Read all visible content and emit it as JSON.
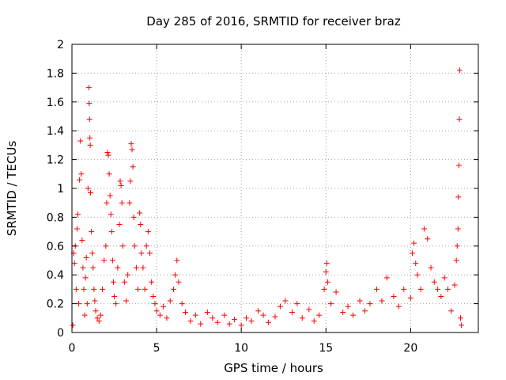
{
  "chart_data": {
    "type": "scatter",
    "title": "Day 285 of 2016, SRMTID for receiver braz",
    "xlabel": "GPS time / hours",
    "ylabel": "SRMTID / TECUs",
    "xlim": [
      0,
      24
    ],
    "ylim": [
      0,
      2
    ],
    "xticks": [
      0,
      5,
      10,
      15,
      20
    ],
    "xtick_labels": [
      "0",
      "5",
      "10",
      "15",
      "20"
    ],
    "yticks": [
      0,
      0.2,
      0.4,
      0.6,
      0.8,
      1,
      1.2,
      1.4,
      1.6,
      1.8,
      2
    ],
    "ytick_labels": [
      "0",
      "0.2",
      "0.4",
      "0.6",
      "0.8",
      "1",
      "1.2",
      "1.4",
      "1.6",
      "1.8",
      "2"
    ],
    "grid": true,
    "marker": "+",
    "series": [
      {
        "name": "SRMTID",
        "color": "#ff0000",
        "points": [
          [
            0.05,
            0.05
          ],
          [
            0.1,
            0.55
          ],
          [
            0.15,
            0.48
          ],
          [
            0.2,
            0.6
          ],
          [
            0.25,
            0.3
          ],
          [
            0.3,
            0.72
          ],
          [
            0.35,
            0.82
          ],
          [
            0.4,
            0.2
          ],
          [
            0.45,
            1.06
          ],
          [
            0.5,
            1.33
          ],
          [
            0.55,
            1.1
          ],
          [
            0.6,
            0.64
          ],
          [
            0.65,
            0.45
          ],
          [
            0.7,
            0.3
          ],
          [
            0.75,
            0.12
          ],
          [
            0.8,
            0.38
          ],
          [
            0.85,
            0.52
          ],
          [
            0.9,
            0.2
          ],
          [
            0.95,
            1.0
          ],
          [
            1.0,
            1.7
          ],
          [
            1.02,
            1.59
          ],
          [
            1.04,
            1.48
          ],
          [
            1.06,
            1.35
          ],
          [
            1.08,
            1.3
          ],
          [
            1.1,
            0.97
          ],
          [
            1.15,
            0.7
          ],
          [
            1.2,
            0.55
          ],
          [
            1.25,
            0.45
          ],
          [
            1.3,
            0.3
          ],
          [
            1.35,
            0.22
          ],
          [
            1.4,
            0.15
          ],
          [
            1.5,
            0.1
          ],
          [
            1.6,
            0.08
          ],
          [
            1.7,
            0.12
          ],
          [
            1.8,
            0.3
          ],
          [
            1.9,
            0.5
          ],
          [
            2.0,
            0.6
          ],
          [
            2.05,
            0.9
          ],
          [
            2.1,
            1.25
          ],
          [
            2.15,
            1.23
          ],
          [
            2.2,
            1.1
          ],
          [
            2.25,
            0.95
          ],
          [
            2.3,
            0.82
          ],
          [
            2.35,
            0.7
          ],
          [
            2.4,
            0.5
          ],
          [
            2.45,
            0.35
          ],
          [
            2.5,
            0.25
          ],
          [
            2.6,
            0.2
          ],
          [
            2.7,
            0.45
          ],
          [
            2.8,
            0.75
          ],
          [
            2.85,
            1.05
          ],
          [
            2.9,
            1.02
          ],
          [
            2.95,
            0.9
          ],
          [
            3.0,
            0.6
          ],
          [
            3.1,
            0.35
          ],
          [
            3.2,
            0.22
          ],
          [
            3.3,
            0.4
          ],
          [
            3.4,
            0.9
          ],
          [
            3.45,
            1.05
          ],
          [
            3.5,
            1.31
          ],
          [
            3.55,
            1.27
          ],
          [
            3.6,
            1.15
          ],
          [
            3.65,
            0.8
          ],
          [
            3.7,
            0.6
          ],
          [
            3.8,
            0.45
          ],
          [
            3.9,
            0.3
          ],
          [
            4.0,
            0.83
          ],
          [
            4.05,
            0.75
          ],
          [
            4.1,
            0.55
          ],
          [
            4.2,
            0.45
          ],
          [
            4.3,
            0.3
          ],
          [
            4.4,
            0.6
          ],
          [
            4.5,
            0.7
          ],
          [
            4.6,
            0.55
          ],
          [
            4.7,
            0.35
          ],
          [
            4.8,
            0.25
          ],
          [
            4.9,
            0.2
          ],
          [
            5.0,
            0.15
          ],
          [
            5.2,
            0.12
          ],
          [
            5.4,
            0.18
          ],
          [
            5.6,
            0.1
          ],
          [
            5.8,
            0.22
          ],
          [
            6.0,
            0.3
          ],
          [
            6.1,
            0.4
          ],
          [
            6.2,
            0.5
          ],
          [
            6.3,
            0.35
          ],
          [
            6.5,
            0.2
          ],
          [
            6.7,
            0.14
          ],
          [
            7.0,
            0.08
          ],
          [
            7.3,
            0.12
          ],
          [
            7.6,
            0.06
          ],
          [
            8.0,
            0.14
          ],
          [
            8.3,
            0.1
          ],
          [
            8.6,
            0.07
          ],
          [
            9.0,
            0.12
          ],
          [
            9.3,
            0.06
          ],
          [
            9.6,
            0.09
          ],
          [
            10.0,
            0.05
          ],
          [
            10.3,
            0.1
          ],
          [
            10.6,
            0.08
          ],
          [
            11.0,
            0.15
          ],
          [
            11.3,
            0.12
          ],
          [
            11.6,
            0.07
          ],
          [
            12.0,
            0.11
          ],
          [
            12.3,
            0.18
          ],
          [
            12.6,
            0.22
          ],
          [
            13.0,
            0.14
          ],
          [
            13.3,
            0.2
          ],
          [
            13.6,
            0.1
          ],
          [
            14.0,
            0.16
          ],
          [
            14.3,
            0.08
          ],
          [
            14.6,
            0.12
          ],
          [
            14.9,
            0.3
          ],
          [
            15.0,
            0.42
          ],
          [
            15.05,
            0.48
          ],
          [
            15.1,
            0.35
          ],
          [
            15.3,
            0.2
          ],
          [
            15.6,
            0.28
          ],
          [
            16.0,
            0.14
          ],
          [
            16.3,
            0.18
          ],
          [
            16.6,
            0.12
          ],
          [
            17.0,
            0.22
          ],
          [
            17.3,
            0.15
          ],
          [
            17.6,
            0.2
          ],
          [
            18.0,
            0.3
          ],
          [
            18.3,
            0.22
          ],
          [
            18.6,
            0.38
          ],
          [
            19.0,
            0.25
          ],
          [
            19.3,
            0.18
          ],
          [
            19.6,
            0.3
          ],
          [
            20.0,
            0.24
          ],
          [
            20.1,
            0.55
          ],
          [
            20.2,
            0.62
          ],
          [
            20.3,
            0.48
          ],
          [
            20.4,
            0.4
          ],
          [
            20.6,
            0.3
          ],
          [
            20.8,
            0.72
          ],
          [
            21.0,
            0.65
          ],
          [
            21.2,
            0.45
          ],
          [
            21.4,
            0.35
          ],
          [
            21.6,
            0.3
          ],
          [
            21.8,
            0.25
          ],
          [
            22.0,
            0.38
          ],
          [
            22.2,
            0.3
          ],
          [
            22.4,
            0.15
          ],
          [
            22.6,
            0.33
          ],
          [
            22.7,
            0.5
          ],
          [
            22.75,
            0.6
          ],
          [
            22.8,
            0.72
          ],
          [
            22.82,
            0.94
          ],
          [
            22.85,
            1.16
          ],
          [
            22.88,
            1.48
          ],
          [
            22.9,
            1.82
          ],
          [
            22.95,
            0.1
          ],
          [
            23.0,
            0.05
          ]
        ]
      }
    ]
  }
}
